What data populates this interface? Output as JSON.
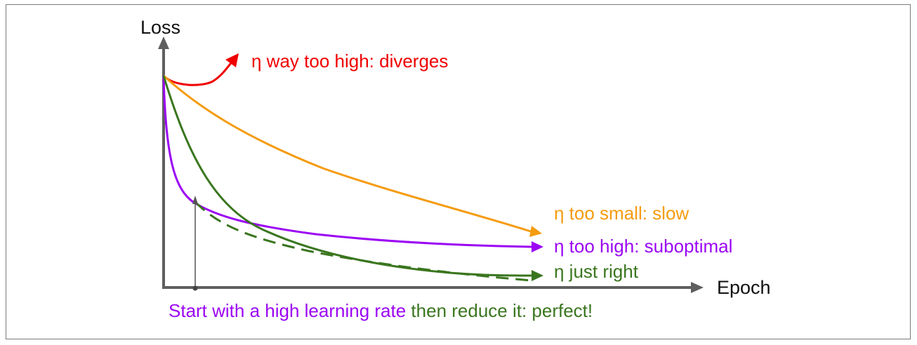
{
  "axes": {
    "y_label": "Loss",
    "x_label": "Epoch"
  },
  "curves": {
    "diverges": {
      "label": "η way too high: diverges",
      "color": "#f00000"
    },
    "slow": {
      "label": "η too small: slow",
      "color": "#f59b0e"
    },
    "suboptimal": {
      "label": "η too high: suboptimal",
      "color": "#9b05f3"
    },
    "just_right": {
      "label": "η just right",
      "color": "#3a761f"
    },
    "schedule": {
      "color": "#3a761f",
      "style": "dashed"
    }
  },
  "caption": {
    "part1": "Start with a high learning rate",
    "part2": " then reduce it: perfect!",
    "part1_color": "#9b05f3",
    "part2_color": "#3a761f"
  },
  "colors": {
    "axis": "#5f5f5f",
    "frame": "#7a7a7a"
  }
}
